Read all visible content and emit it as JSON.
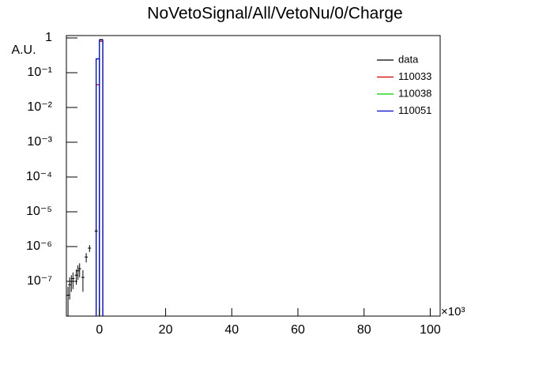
{
  "chart_data": {
    "type": "histogram",
    "title": "NoVetoSignal/All/VetoNu/0/Charge",
    "y_label": "A.U.",
    "x_multiplier": "×10³",
    "log_y": true,
    "legend_position": "upper-right",
    "xlim": [
      -10,
      103
    ],
    "ylim": [
      1e-08,
      1.17
    ],
    "xticks": [
      0,
      20,
      40,
      60,
      80,
      100
    ],
    "yticks": [
      {
        "value": 1,
        "label": "1"
      },
      {
        "value": 0.1,
        "label": "10⁻¹"
      },
      {
        "value": 0.01,
        "label": "10⁻²"
      },
      {
        "value": 0.001,
        "label": "10⁻³"
      },
      {
        "value": 0.0001,
        "label": "10⁻⁴"
      },
      {
        "value": 1e-05,
        "label": "10⁻⁵"
      },
      {
        "value": 1e-06,
        "label": "10⁻⁶"
      },
      {
        "value": 1e-07,
        "label": "10⁻⁷"
      }
    ],
    "bins": [
      -1,
      0,
      1
    ],
    "series": [
      {
        "name": "110033",
        "color": "#cc0000",
        "values": [
          0.045,
          0.8
        ]
      },
      {
        "name": "110038",
        "color": "#00cc00",
        "values": [
          0.25,
          0.88
        ]
      },
      {
        "name": "110051",
        "color": "#0000cc",
        "values": [
          0.25,
          0.88
        ]
      }
    ],
    "points": {
      "name": "data",
      "color": "#000000",
      "x": [
        -9.5,
        -9,
        -8.5,
        -8,
        -7,
        -6.5,
        -6,
        -5,
        -4,
        -3,
        -1,
        0.5
      ],
      "values": [
        4e-08,
        8e-08,
        1e-07,
        1.2e-07,
        1.5e-07,
        2e-07,
        2.3e-07,
        1.3e-07,
        5e-07,
        9e-07,
        2.8e-06,
        0.9
      ],
      "errors": [
        3e-08,
        5e-08,
        5e-08,
        6e-08,
        7e-08,
        9e-08,
        1e-07,
        8e-08,
        1.5e-07,
        2e-07,
        3e-07,
        0.01
      ]
    }
  }
}
